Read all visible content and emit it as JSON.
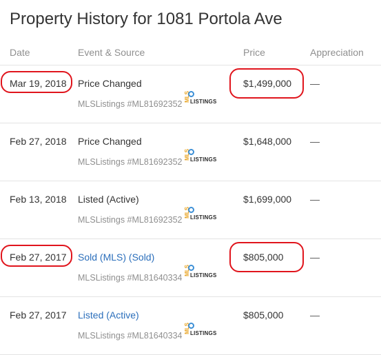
{
  "title": "Property History for 1081 Portola Ave",
  "columns": {
    "date": "Date",
    "event": "Event & Source",
    "price": "Price",
    "appreciation": "Appreciation"
  },
  "rows": [
    {
      "date": "Mar 19, 2018",
      "event": "Price Changed",
      "event_link": false,
      "source": "MLSListings #ML81692352",
      "price": "$1,499,000",
      "appreciation": "—",
      "highlighted": true
    },
    {
      "date": "Feb 27, 2018",
      "event": "Price Changed",
      "event_link": false,
      "source": "MLSListings #ML81692352",
      "price": "$1,648,000",
      "appreciation": "—",
      "highlighted": false
    },
    {
      "date": "Feb 13, 2018",
      "event": "Listed (Active)",
      "event_link": false,
      "source": "MLSListings #ML81692352",
      "price": "$1,699,000",
      "appreciation": "—",
      "highlighted": false
    },
    {
      "date": "Feb 27, 2017",
      "event": "Sold (MLS) (Sold)",
      "event_link": true,
      "source": "MLSListings #ML81640334",
      "price": "$805,000",
      "appreciation": "—",
      "highlighted": true
    },
    {
      "date": "Feb 27, 2017",
      "event": "Listed (Active)",
      "event_link": true,
      "source": "MLSListings #ML81640334",
      "price": "$805,000",
      "appreciation": "—",
      "highlighted": false
    }
  ],
  "logo": {
    "vertical_text": "MLS",
    "text": "LISTINGS"
  },
  "colors": {
    "link": "#2a6ebb",
    "annotation": "#e0141c",
    "muted": "#8f8f8f"
  }
}
